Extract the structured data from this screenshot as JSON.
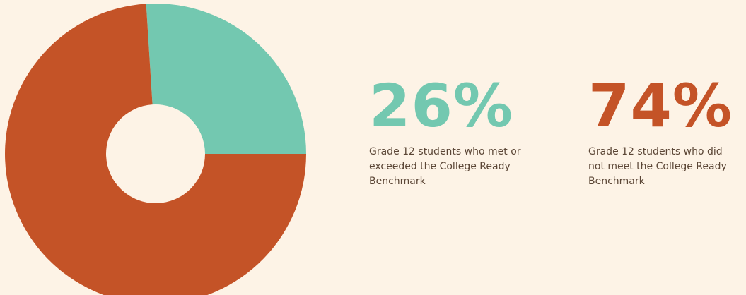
{
  "chart_data": {
    "type": "pie",
    "donut": true,
    "categories": [
      "Grade 12 students who met or exceeded the College Ready Benchmark",
      "Grade 12 students who did not meet the College Ready Benchmark"
    ],
    "values": [
      26,
      74
    ],
    "value_labels": [
      "26%",
      "74%"
    ],
    "colors": [
      "#73c8b0",
      "#c45327"
    ]
  }
}
